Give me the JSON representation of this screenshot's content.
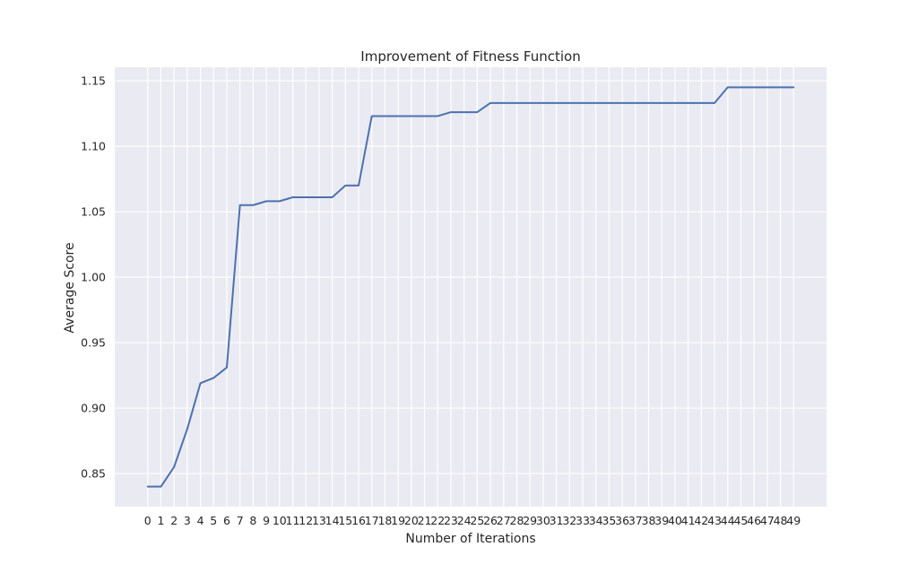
{
  "chart_data": {
    "type": "line",
    "title": "Improvement of Fitness Function",
    "xlabel": "Number of Iterations",
    "ylabel": "Average Score",
    "x": [
      0,
      1,
      2,
      3,
      4,
      5,
      6,
      7,
      8,
      9,
      10,
      11,
      12,
      13,
      14,
      15,
      16,
      17,
      18,
      19,
      20,
      21,
      22,
      23,
      24,
      25,
      26,
      27,
      28,
      29,
      30,
      31,
      32,
      33,
      34,
      35,
      36,
      37,
      38,
      39,
      40,
      41,
      42,
      43,
      44,
      45,
      46,
      47,
      48,
      49
    ],
    "series": [
      {
        "values": [
          0.84,
          0.84,
          0.855,
          0.884,
          0.919,
          0.923,
          0.931,
          1.055,
          1.055,
          1.058,
          1.058,
          1.061,
          1.061,
          1.061,
          1.061,
          1.07,
          1.07,
          1.123,
          1.123,
          1.123,
          1.123,
          1.123,
          1.123,
          1.126,
          1.126,
          1.126,
          1.133,
          1.133,
          1.133,
          1.133,
          1.133,
          1.133,
          1.133,
          1.133,
          1.133,
          1.133,
          1.133,
          1.133,
          1.133,
          1.133,
          1.133,
          1.133,
          1.133,
          1.133,
          1.145,
          1.145,
          1.145,
          1.145,
          1.145,
          1.145
        ],
        "color": "#4c72b0"
      }
    ],
    "yticks": [
      0.85,
      0.9,
      0.95,
      1.0,
      1.05,
      1.1,
      1.15
    ],
    "ytick_labels": [
      "0.85",
      "0.90",
      "0.95",
      "1.00",
      "1.05",
      "1.10",
      "1.15"
    ],
    "xlim": [
      -2.5,
      51.5
    ],
    "ylim": [
      0.8247,
      1.1603
    ],
    "grid": true,
    "style": {
      "background": "#eaeaf2",
      "grid_color": "#ffffff"
    }
  }
}
